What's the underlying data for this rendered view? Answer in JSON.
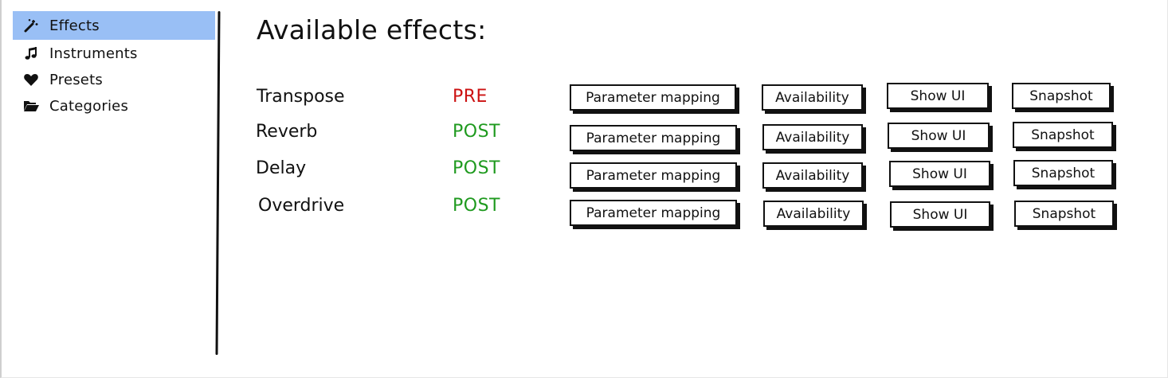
{
  "sidebar": {
    "items": [
      {
        "label": "Effects",
        "icon": "magic-wand-icon",
        "active": true
      },
      {
        "label": "Instruments",
        "icon": "music-note-icon",
        "active": false
      },
      {
        "label": "Presets",
        "icon": "heart-icon",
        "active": false
      },
      {
        "label": "Categories",
        "icon": "folder-open-icon",
        "active": false
      }
    ]
  },
  "main": {
    "title": "Available effects:",
    "effects": [
      {
        "name": "Transpose",
        "stage": "PRE"
      },
      {
        "name": "Reverb",
        "stage": "POST"
      },
      {
        "name": "Delay",
        "stage": "POST"
      },
      {
        "name": "Overdrive",
        "stage": "POST"
      }
    ],
    "buttons": {
      "parameter_mapping": "Parameter mapping",
      "availability": "Availability",
      "show_ui": "Show UI",
      "snapshot": "Snapshot"
    }
  },
  "colors": {
    "active_nav": "#99bff5",
    "pre_stage": "#cc1111",
    "post_stage": "#1f9a1f"
  }
}
